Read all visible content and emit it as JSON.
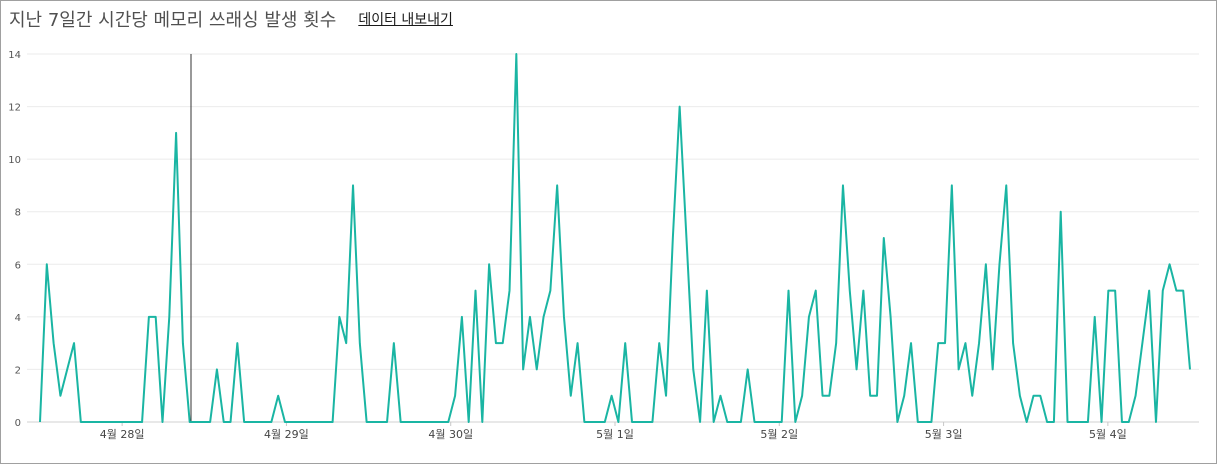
{
  "header": {
    "title": "지난 7일간 시간당 메모리 쓰래싱 발생 횟수",
    "export_label": "데이터 내보내기"
  },
  "chart_data": {
    "type": "line",
    "title": "지난 7일간 시간당 메모리 쓰래싱 발생 횟수",
    "xlabel": "",
    "ylabel": "",
    "ylim": [
      0,
      14
    ],
    "yticks": [
      "0",
      "2",
      "4",
      "6",
      "8",
      "10",
      "12",
      "14"
    ],
    "xtick_labels": [
      "4월 28일",
      "4월 29일",
      "4월 30일",
      "5월 1일",
      "5월 2일",
      "5월 3일",
      "5월 4일"
    ],
    "grid": "horizontal",
    "line_color": "#1ab5a3",
    "values": [
      0,
      6,
      3,
      1,
      2,
      3,
      0,
      0,
      0,
      0,
      0,
      0,
      0,
      0,
      0,
      0,
      4,
      4,
      0,
      4,
      11,
      3,
      0,
      0,
      0,
      0,
      2,
      0,
      0,
      3,
      0,
      0,
      0,
      0,
      0,
      1,
      0,
      0,
      0,
      0,
      0,
      0,
      0,
      0,
      4,
      3,
      9,
      3,
      0,
      0,
      0,
      0,
      3,
      0,
      0,
      0,
      0,
      0,
      0,
      0,
      0,
      1,
      4,
      0,
      5,
      0,
      6,
      3,
      3,
      5,
      14,
      2,
      4,
      2,
      4,
      5,
      9,
      4,
      1,
      3,
      0,
      0,
      0,
      0,
      1,
      0,
      3,
      0,
      0,
      0,
      0,
      3,
      1,
      7,
      12,
      7,
      2,
      0,
      5,
      0,
      1,
      0,
      0,
      0,
      2,
      0,
      0,
      0,
      0,
      0,
      5,
      0,
      1,
      4,
      5,
      1,
      1,
      3,
      9,
      5,
      2,
      5,
      1,
      1,
      7,
      4,
      0,
      1,
      3,
      0,
      0,
      0,
      3,
      3,
      9,
      2,
      3,
      1,
      3,
      6,
      2,
      6,
      9,
      3,
      1,
      0,
      1,
      1,
      0,
      0,
      8,
      0,
      0,
      0,
      0,
      4,
      0,
      5,
      5,
      0,
      0,
      1,
      3,
      5,
      0,
      5,
      6,
      5,
      5,
      2
    ]
  }
}
